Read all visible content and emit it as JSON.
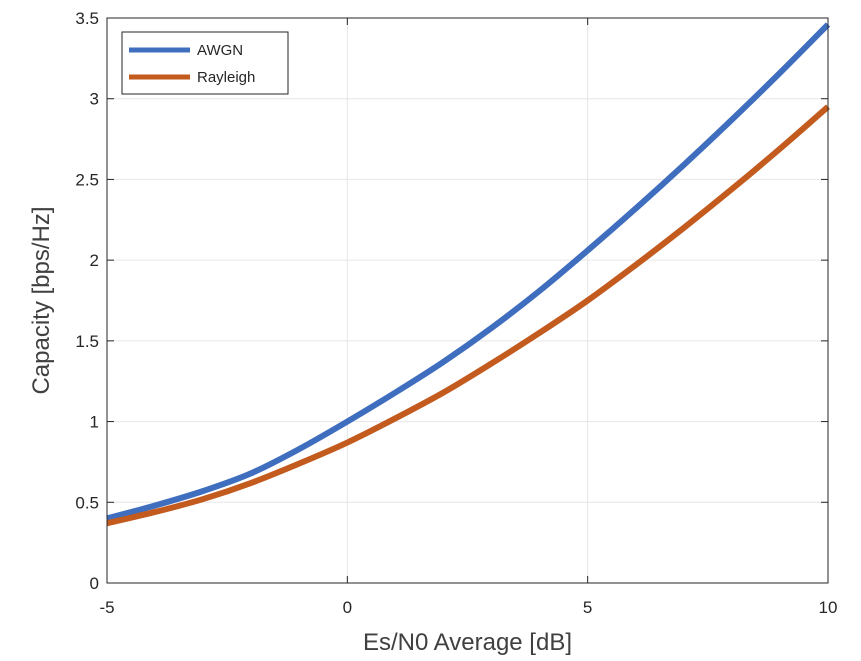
{
  "chart_data": {
    "type": "line",
    "title": "",
    "xlabel": "Es/N0 Average [dB]",
    "ylabel": "Capacity [bps/Hz]",
    "xlim": [
      -5,
      10
    ],
    "ylim": [
      0,
      3.5
    ],
    "xticks": [
      "-5",
      "0",
      "5",
      "10"
    ],
    "yticks": [
      "0",
      "0.5",
      "1",
      "1.5",
      "2",
      "2.5",
      "3",
      "3.5"
    ],
    "grid": true,
    "legend": "top-left",
    "x": [
      -5,
      -4,
      -3,
      -2,
      -1,
      0,
      1,
      2,
      3,
      4,
      5,
      6,
      7,
      8,
      9,
      10
    ],
    "series": [
      {
        "name": "AWGN",
        "color": "#3F6EBF",
        "values": [
          0.4,
          0.48,
          0.57,
          0.68,
          0.83,
          1.0,
          1.18,
          1.37,
          1.58,
          1.81,
          2.06,
          2.32,
          2.59,
          2.87,
          3.16,
          3.46
        ]
      },
      {
        "name": "Rayleigh",
        "color": "#C35A1E",
        "values": [
          0.37,
          0.44,
          0.52,
          0.62,
          0.74,
          0.87,
          1.02,
          1.18,
          1.36,
          1.55,
          1.75,
          1.97,
          2.2,
          2.44,
          2.69,
          2.95
        ]
      }
    ]
  }
}
